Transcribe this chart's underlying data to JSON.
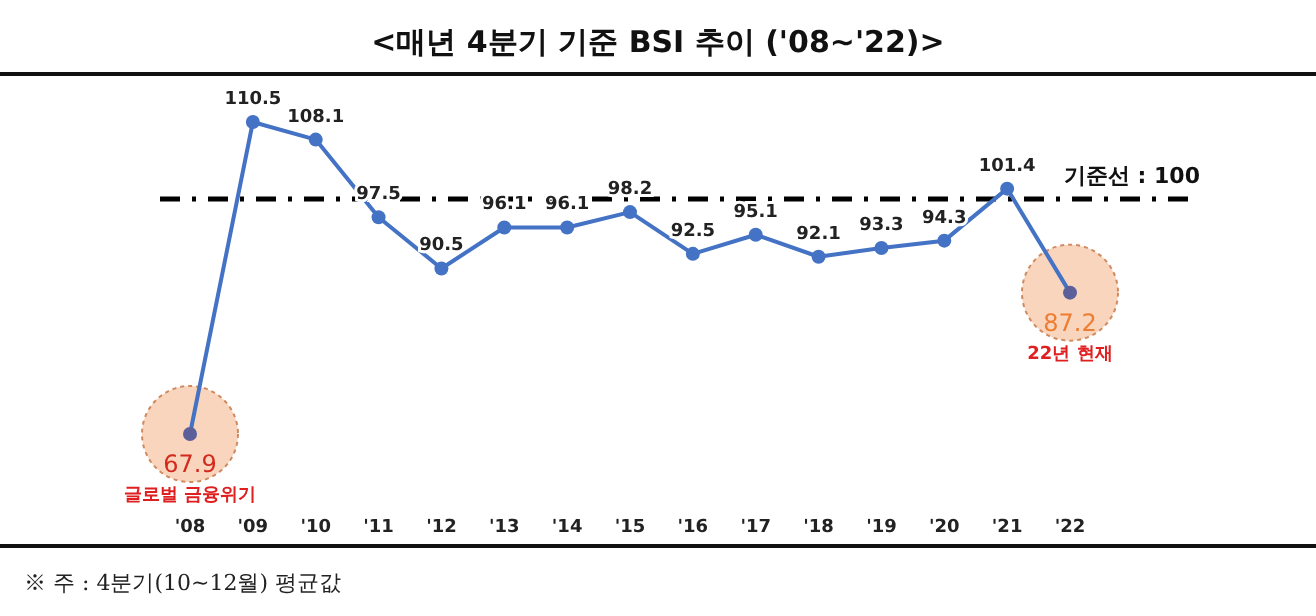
{
  "chart_data": {
    "type": "line",
    "title": "<매년 4분기 기준 BSI 추이 ('08~'22)>",
    "categories": [
      "'08",
      "'09",
      "'10",
      "'11",
      "'12",
      "'13",
      "'14",
      "'15",
      "'16",
      "'17",
      "'18",
      "'19",
      "'20",
      "'21",
      "'22"
    ],
    "series": [
      {
        "color": "#4472c4",
        "values": [
          67.9,
          110.5,
          108.1,
          97.5,
          90.5,
          96.1,
          96.1,
          98.2,
          92.5,
          95.1,
          92.1,
          93.3,
          94.3,
          101.4,
          87.2
        ]
      }
    ],
    "marker": "circle",
    "line_style": "solid",
    "data_labels": true,
    "ref_lines": [
      {
        "axis": "y",
        "value": 100,
        "label": "기준선 : 100",
        "color": "#000000",
        "line_style": "dashdot"
      }
    ],
    "annotations": [
      {
        "text": "글로벌 금융위기",
        "x": "'08",
        "y": 67.9
      },
      {
        "text": "22년 현재",
        "x": "'22",
        "y": 87.2
      },
      "※ 주 : 4분기(10~12월) 평균값"
    ]
  }
}
